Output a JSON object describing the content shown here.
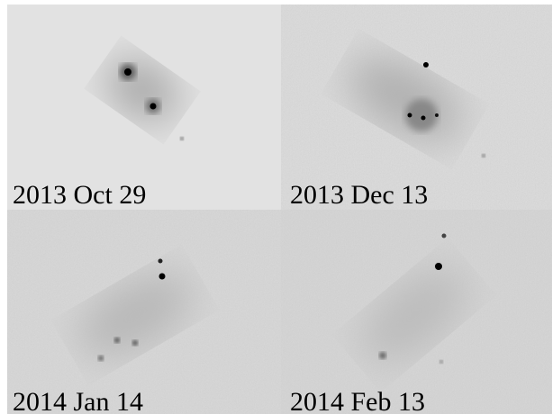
{
  "panels": [
    {
      "label": "2013 Oct 29"
    },
    {
      "label": "2013 Dec 13"
    },
    {
      "label": "2014 Jan 14"
    },
    {
      "label": "2014 Feb 13"
    }
  ]
}
